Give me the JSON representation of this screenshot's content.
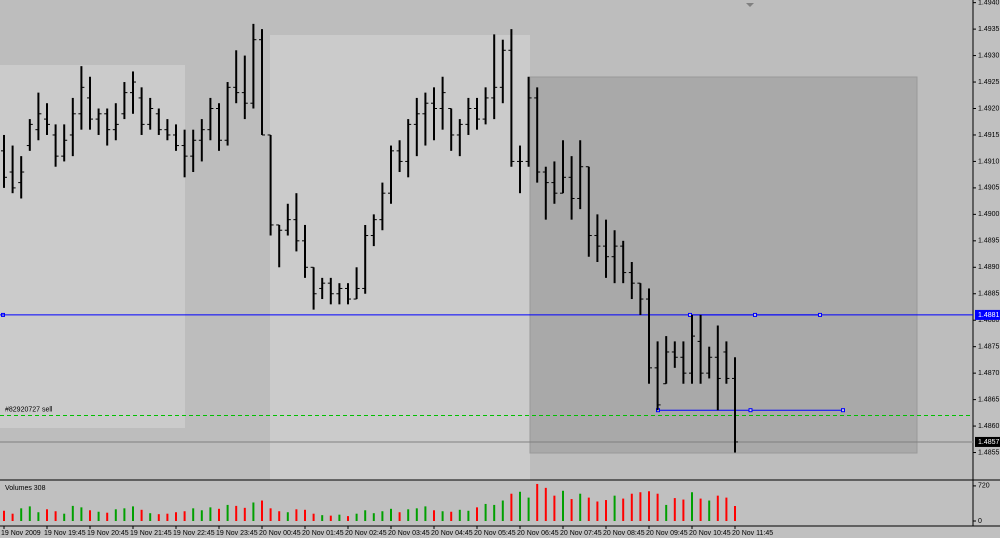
{
  "chart_data": [
    {
      "type": "ohlc",
      "ylim": [
        1.485,
        1.49405
      ],
      "yticks": [
        {
          "value": 1.494,
          "label": "1.4940"
        },
        1.4935,
        {
          "value": 1.493,
          "label": "1.4930"
        },
        1.4925,
        {
          "value": 1.492,
          "label": "1.4920"
        },
        1.4915,
        {
          "value": 1.491,
          "label": "1.4910"
        },
        1.4905,
        {
          "value": 1.49,
          "label": "1.4900"
        },
        1.4895,
        {
          "value": 1.489,
          "label": "1.4890"
        },
        1.4885,
        {
          "value": 1.488,
          "label": "1.4880"
        },
        1.4875,
        {
          "value": 1.487,
          "label": "1.4870"
        },
        1.4865,
        {
          "value": 1.486,
          "label": "1.4860"
        },
        1.4855
      ],
      "categories": [
        "19 Nov 2009",
        null,
        null,
        null,
        null,
        "19 Nov 19:45",
        null,
        null,
        null,
        null,
        "19 Nov 20:45",
        null,
        null,
        null,
        null,
        "19 Nov 21:45",
        null,
        null,
        null,
        null,
        "19 Nov 22:45",
        null,
        null,
        null,
        null,
        "19 Nov 23:45",
        null,
        null,
        null,
        null,
        "20 Nov 00:45",
        null,
        null,
        null,
        null,
        "20 Nov 01:45",
        null,
        null,
        null,
        null,
        "20 Nov 02:45",
        null,
        null,
        null,
        null,
        "20 Nov 03:45",
        null,
        null,
        null,
        null,
        "20 Nov 04:45",
        null,
        null,
        null,
        null,
        "20 Nov 05:45",
        null,
        null,
        null,
        null,
        "20 Nov 06:45",
        null,
        null,
        null,
        null,
        "20 Nov 07:45",
        null,
        null,
        null,
        null,
        "20 Nov 08:45",
        null,
        null,
        null,
        null,
        "20 Nov 09:45",
        null,
        null,
        null,
        null,
        "20 Nov 10:45",
        null,
        null,
        null,
        null,
        "20 Nov 11:45"
      ],
      "open": [
        1.4912,
        1.4908,
        1.4906,
        1.4913,
        1.4916,
        1.4918,
        1.4915,
        1.4911,
        1.4915,
        1.4919,
        1.4922,
        1.4918,
        1.4919,
        1.4916,
        1.4919,
        1.4923,
        1.4922,
        1.4917,
        1.4919,
        1.4916,
        1.4915,
        1.4913,
        1.4911,
        1.4914,
        1.4916,
        1.492,
        1.4914,
        1.4924,
        1.4923,
        1.4921,
        1.4933,
        1.4915,
        1.4898,
        1.4897,
        1.4899,
        1.4895,
        1.489,
        1.4886,
        1.4887,
        1.4885,
        1.4886,
        1.4884,
        1.4886,
        1.4896,
        1.4899,
        1.4904,
        1.4912,
        1.491,
        1.4917,
        1.4919,
        1.4921,
        1.492,
        1.492,
        1.4915,
        1.4917,
        1.492,
        1.4918,
        1.4922,
        1.4924,
        1.4931,
        1.491,
        1.491,
        1.4922,
        1.4908,
        1.4906,
        1.4904,
        1.4907,
        1.4903,
        1.4909,
        1.4896,
        1.4894,
        1.4892,
        1.4894,
        1.4889,
        1.4887,
        1.4884,
        1.4871,
        1.4868,
        1.4874,
        1.4873,
        1.487,
        1.4876,
        1.487,
        1.4873,
        1.4874,
        1.4869
      ],
      "high": [
        1.4915,
        1.4913,
        1.4911,
        1.4918,
        1.4923,
        1.4921,
        1.4917,
        1.4917,
        1.4922,
        1.4928,
        1.4926,
        1.492,
        1.492,
        1.4921,
        1.4925,
        1.4927,
        1.4924,
        1.4922,
        1.492,
        1.4918,
        1.4917,
        1.4916,
        1.4916,
        1.4918,
        1.4922,
        1.4921,
        1.4925,
        1.4931,
        1.493,
        1.4936,
        1.4935,
        1.4915,
        1.4898,
        1.4902,
        1.4904,
        1.4898,
        1.489,
        1.4888,
        1.4888,
        1.4887,
        1.4887,
        1.489,
        1.4898,
        1.49,
        1.4906,
        1.4913,
        1.4914,
        1.4918,
        1.4922,
        1.4923,
        1.4924,
        1.4926,
        1.492,
        1.4918,
        1.4922,
        1.4922,
        1.4924,
        1.4934,
        1.4933,
        1.4935,
        1.4913,
        1.4926,
        1.4924,
        1.4909,
        1.491,
        1.4914,
        1.4911,
        1.4914,
        1.4909,
        1.49,
        1.4899,
        1.4897,
        1.4895,
        1.4891,
        1.4887,
        1.4886,
        1.4876,
        1.4877,
        1.4876,
        1.4876,
        1.4881,
        1.4881,
        1.4875,
        1.4879,
        1.4876,
        1.4873
      ],
      "low": [
        1.4905,
        1.4904,
        1.4903,
        1.4912,
        1.4914,
        1.4915,
        1.4909,
        1.491,
        1.4911,
        1.4916,
        1.4916,
        1.4915,
        1.4913,
        1.4914,
        1.4918,
        1.4919,
        1.4915,
        1.4916,
        1.4915,
        1.4914,
        1.4912,
        1.4907,
        1.4908,
        1.491,
        1.4914,
        1.4912,
        1.4913,
        1.4921,
        1.4918,
        1.492,
        1.4915,
        1.4896,
        1.489,
        1.4896,
        1.4893,
        1.4888,
        1.4882,
        1.4884,
        1.4883,
        1.4883,
        1.4883,
        1.4884,
        1.4885,
        1.4894,
        1.4897,
        1.4902,
        1.4908,
        1.4907,
        1.4911,
        1.4913,
        1.4914,
        1.4916,
        1.4912,
        1.4911,
        1.4915,
        1.4916,
        1.4917,
        1.4918,
        1.4921,
        1.4909,
        1.4904,
        1.4909,
        1.4906,
        1.4899,
        1.4902,
        1.4904,
        1.4899,
        1.4901,
        1.4892,
        1.4891,
        1.4888,
        1.4887,
        1.4887,
        1.4884,
        1.4881,
        1.4868,
        1.4863,
        1.4868,
        1.4871,
        1.4868,
        1.4868,
        1.4868,
        1.4869,
        1.4863,
        1.4868,
        1.4855
      ],
      "close": [
        1.4907,
        1.4905,
        1.4908,
        1.4917,
        1.4919,
        1.4917,
        1.4911,
        1.4914,
        1.4919,
        1.4924,
        1.4918,
        1.4919,
        1.4916,
        1.4917,
        1.4923,
        1.4925,
        1.4917,
        1.492,
        1.4916,
        1.4915,
        1.4913,
        1.4911,
        1.4914,
        1.4916,
        1.492,
        1.4914,
        1.4924,
        1.4923,
        1.4921,
        1.4933,
        1.4915,
        1.4898,
        1.4897,
        1.4899,
        1.4895,
        1.489,
        1.4885,
        1.4887,
        1.4885,
        1.4886,
        1.4884,
        1.4886,
        1.4896,
        1.4899,
        1.4904,
        1.4912,
        1.491,
        1.4917,
        1.4919,
        1.4921,
        1.492,
        1.4923,
        1.4915,
        1.4917,
        1.492,
        1.4918,
        1.4922,
        1.4924,
        1.4931,
        1.491,
        1.491,
        1.4922,
        1.4908,
        1.4906,
        1.4904,
        1.4907,
        1.4903,
        1.4909,
        1.4896,
        1.4894,
        1.4892,
        1.4894,
        1.4889,
        1.4887,
        1.4884,
        1.4871,
        1.4864,
        1.4874,
        1.4873,
        1.487,
        1.4877,
        1.487,
        1.4873,
        1.4869,
        1.4869,
        1.4857
      ],
      "color": "#000000",
      "price_lines": [
        {
          "value": 1.4881,
          "color": "#0000ff"
        },
        {
          "value": 1.4857,
          "color": "#808080"
        }
      ],
      "order_line": {
        "value": 1.4862,
        "label": "#82920727 sell",
        "color": "#00c000"
      },
      "trend_lines": [
        {
          "value": 1.4881,
          "color": "#0000ff"
        },
        {
          "value": 1.4863,
          "color": "#0000ff"
        }
      ]
    },
    {
      "type": "volume",
      "title": "Volumes 308",
      "ylim": [
        0,
        800
      ],
      "yticks": [
        0,
        720
      ],
      "values": [
        210,
        150,
        260,
        300,
        180,
        240,
        200,
        150,
        310,
        280,
        220,
        190,
        170,
        240,
        260,
        300,
        230,
        160,
        140,
        150,
        180,
        200,
        260,
        220,
        280,
        250,
        330,
        310,
        270,
        380,
        420,
        260,
        200,
        180,
        240,
        230,
        150,
        120,
        110,
        130,
        100,
        150,
        220,
        160,
        200,
        250,
        180,
        240,
        260,
        300,
        220,
        200,
        190,
        230,
        210,
        280,
        350,
        330,
        420,
        560,
        600,
        480,
        760,
        680,
        520,
        620,
        450,
        560,
        480,
        400,
        430,
        520,
        460,
        560,
        590,
        610,
        560,
        330,
        470,
        440,
        590,
        460,
        420,
        520,
        480,
        308
      ],
      "up_color": "#00a000",
      "down_color": "#ff0000"
    }
  ]
}
